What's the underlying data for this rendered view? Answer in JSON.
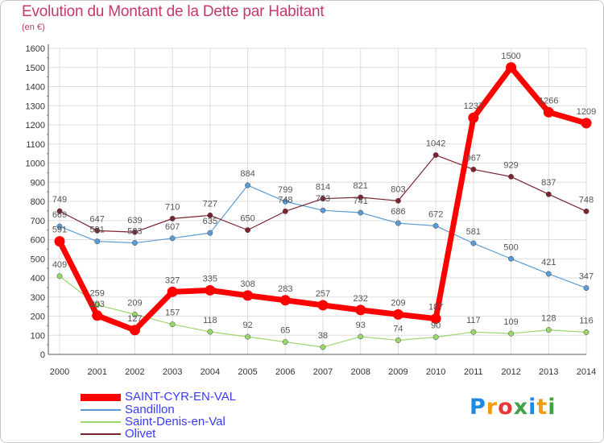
{
  "header": {
    "title": "Evolution du Montant de la Dette par Habitant",
    "subtitle": "(en €)"
  },
  "logo": {
    "letters": [
      "P",
      "r",
      "o",
      "x",
      "i",
      "t",
      "i"
    ],
    "colors": [
      "#1e88e5",
      "#f39c12",
      "#e53935",
      "#43a047",
      "#1e88e5",
      "#f39c12",
      "#43a047"
    ]
  },
  "chart_data": {
    "type": "line",
    "title": "Evolution du Montant de la Dette par Habitant",
    "subtitle": "(en €)",
    "x": [
      "2000",
      "2001",
      "2002",
      "2003",
      "2004",
      "2005",
      "2006",
      "2007",
      "2008",
      "2009",
      "2010",
      "2011",
      "2012",
      "2013",
      "2014"
    ],
    "ylim": [
      0,
      1600
    ],
    "yticks": [
      0,
      100,
      200,
      300,
      400,
      500,
      600,
      700,
      800,
      900,
      1000,
      1100,
      1200,
      1300,
      1400,
      1500,
      1600
    ],
    "grid": true,
    "legend_position": "bottom-left",
    "series": [
      {
        "name": "SAINT-CYR-EN-VAL",
        "color": "#ff0000",
        "width": 7,
        "values": [
          591,
          203,
          127,
          327,
          335,
          308,
          283,
          257,
          232,
          209,
          187,
          1237,
          1500,
          1266,
          1209
        ]
      },
      {
        "name": "Sandillon",
        "color": "#5b9bd5",
        "width": 1.2,
        "values": [
          669,
          591,
          583,
          607,
          635,
          884,
          799,
          753,
          741,
          686,
          672,
          581,
          500,
          421,
          347
        ]
      },
      {
        "name": "Saint-Denis-en-Val",
        "color": "#9ad76b",
        "width": 1.2,
        "values": [
          409,
          259,
          209,
          157,
          118,
          92,
          65,
          38,
          93,
          74,
          90,
          117,
          109,
          128,
          116
        ]
      },
      {
        "name": "Olivet",
        "color": "#7b2430",
        "width": 1.2,
        "values": [
          749,
          647,
          639,
          710,
          727,
          650,
          748,
          814,
          821,
          803,
          1042,
          967,
          929,
          837,
          748
        ]
      }
    ]
  }
}
